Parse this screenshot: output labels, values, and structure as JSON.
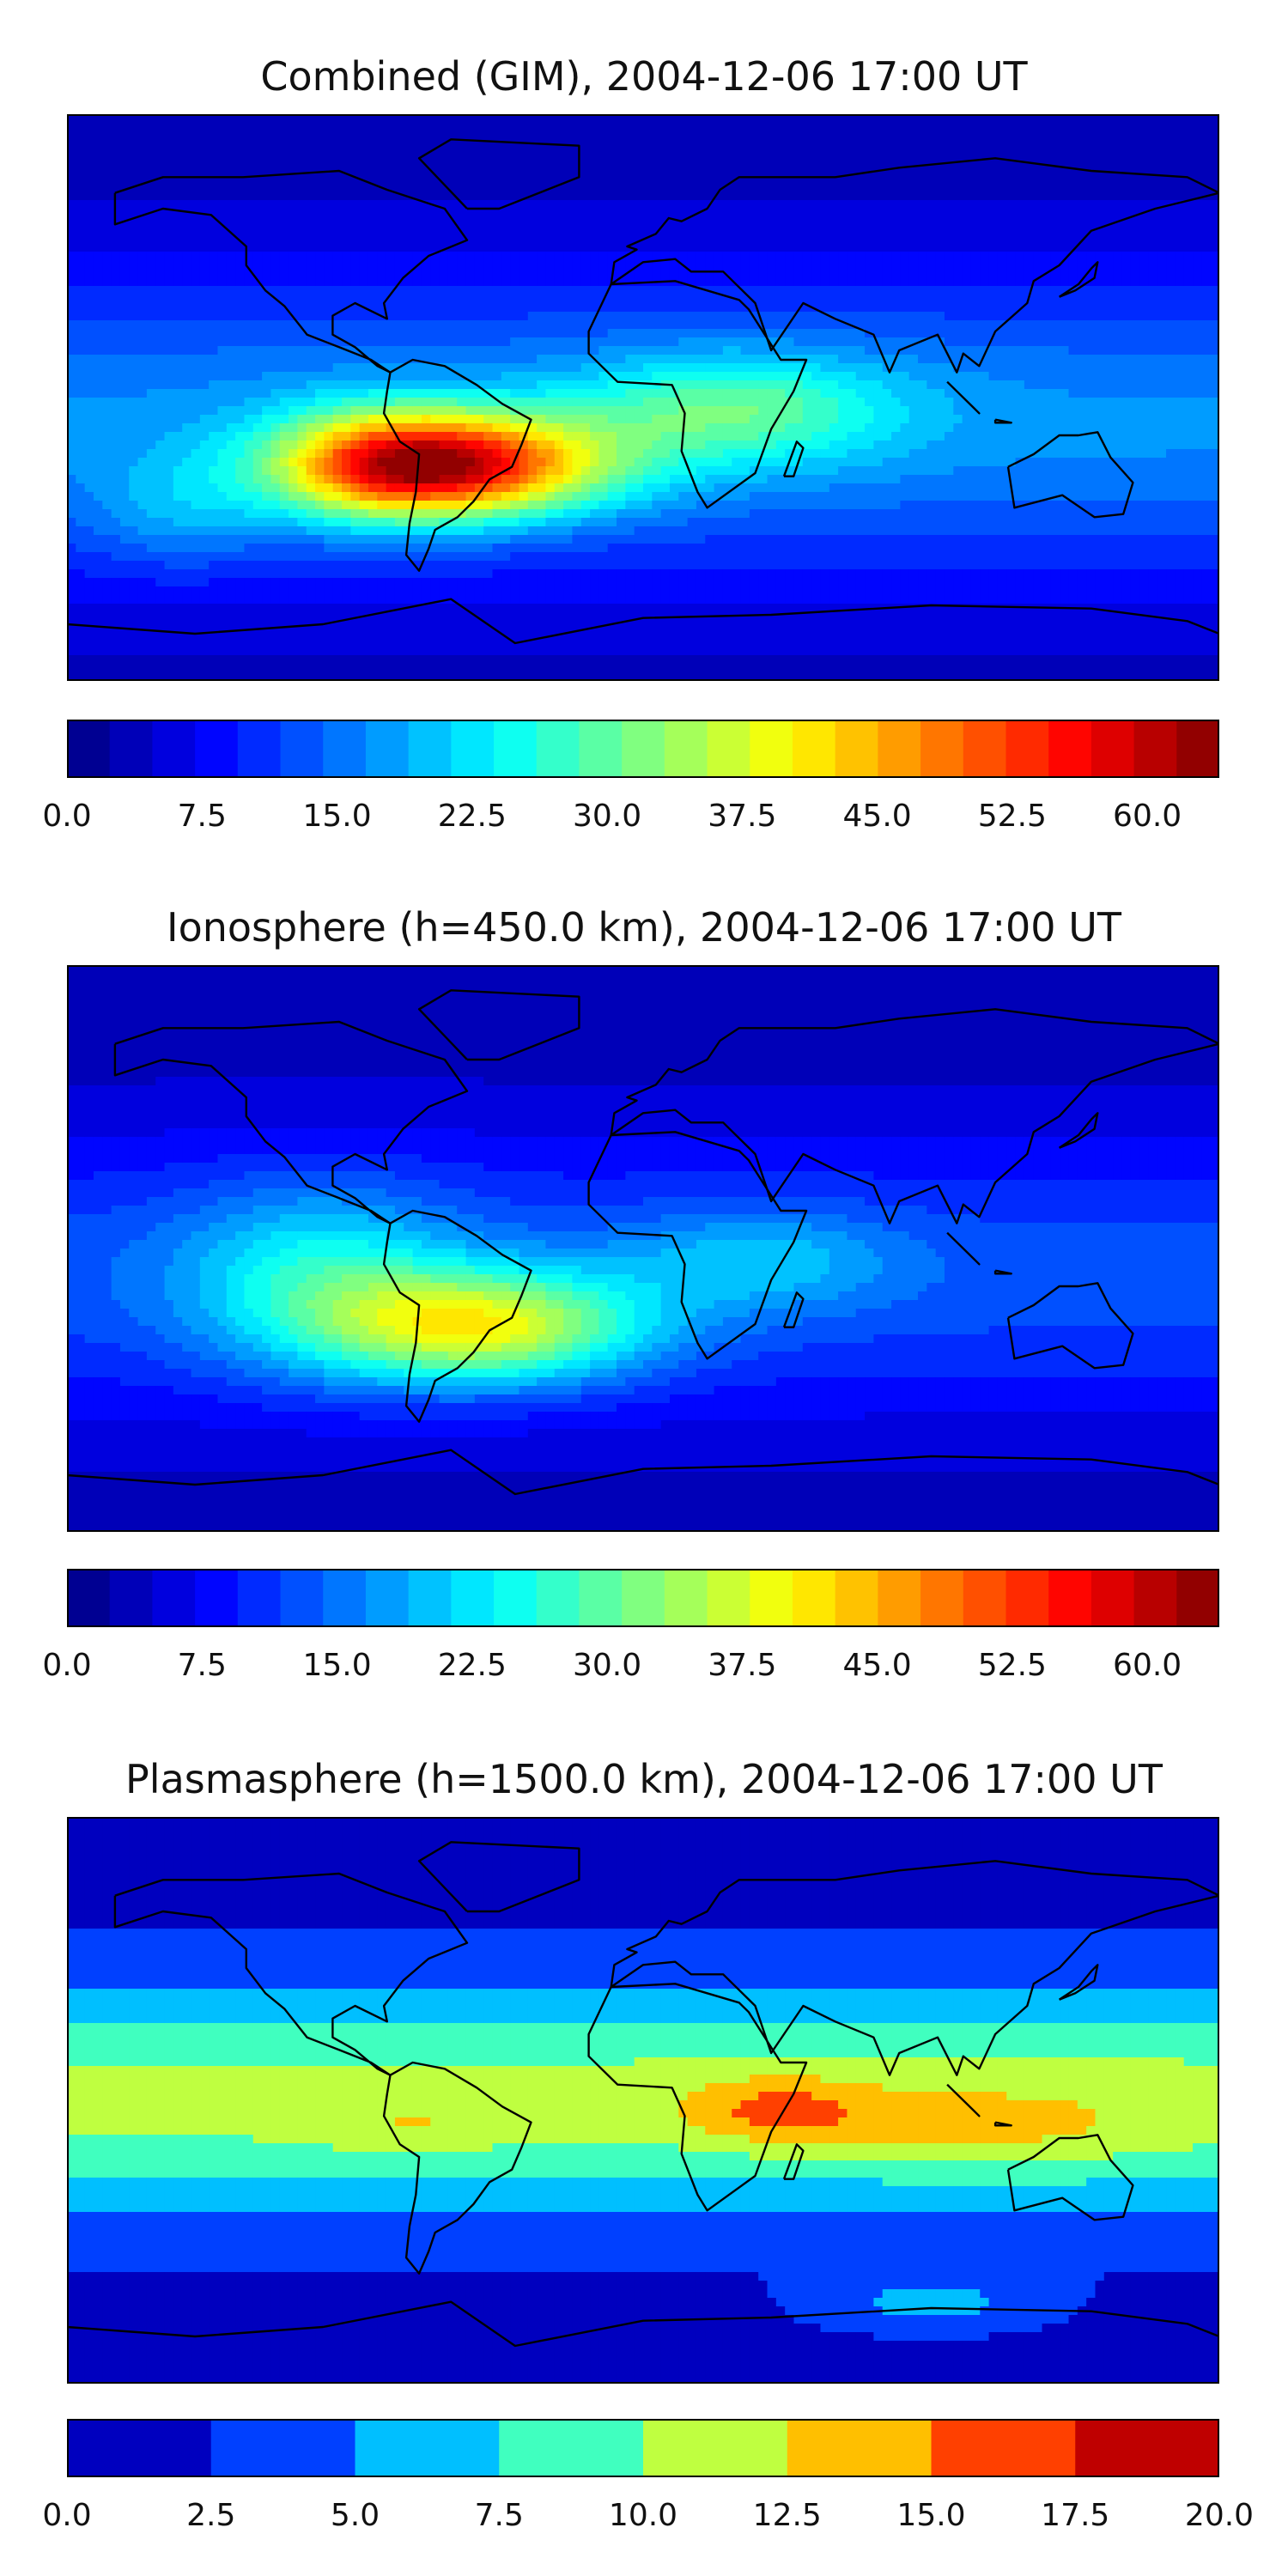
{
  "chart_data": [
    {
      "type": "heatmap",
      "title": "Combined (GIM), 2004-12-06 17:00 UT",
      "colorbar": {
        "min": 0.0,
        "max": 64.0,
        "n_levels": 27,
        "ticks": [
          "0.0",
          "7.5",
          "15.0",
          "22.5",
          "30.0",
          "37.5",
          "45.0",
          "52.5",
          "60.0"
        ],
        "tick_values": [
          0.0,
          7.5,
          15.0,
          22.5,
          30.0,
          37.5,
          45.0,
          52.5,
          60.0
        ]
      },
      "max_region": "South America / South Atlantic",
      "peak_value_approx": 60
    },
    {
      "type": "heatmap",
      "title": "Ionosphere  (h=450.0 km), 2004-12-06 17:00 UT",
      "colorbar": {
        "min": 0.0,
        "max": 64.0,
        "n_levels": 27,
        "ticks": [
          "0.0",
          "7.5",
          "15.0",
          "22.5",
          "30.0",
          "37.5",
          "45.0",
          "52.5",
          "60.0"
        ],
        "tick_values": [
          0.0,
          7.5,
          15.0,
          22.5,
          30.0,
          37.5,
          45.0,
          52.5,
          60.0
        ]
      },
      "max_region": "South America",
      "peak_value_approx": 45
    },
    {
      "type": "heatmap",
      "title": "Plasmasphere (h=1500.0 km), 2004-12-06 17:00 UT",
      "colorbar": {
        "min": 0.0,
        "max": 20.0,
        "n_levels": 8,
        "ticks": [
          "0.0",
          "2.5",
          "5.0",
          "7.5",
          "10.0",
          "12.5",
          "15.0",
          "17.5",
          "20.0"
        ],
        "tick_values": [
          0.0,
          2.5,
          5.0,
          7.5,
          10.0,
          12.5,
          15.0,
          17.5,
          20.0
        ]
      },
      "max_region": "East Africa / Indian Ocean",
      "peak_value_approx": 16
    }
  ]
}
